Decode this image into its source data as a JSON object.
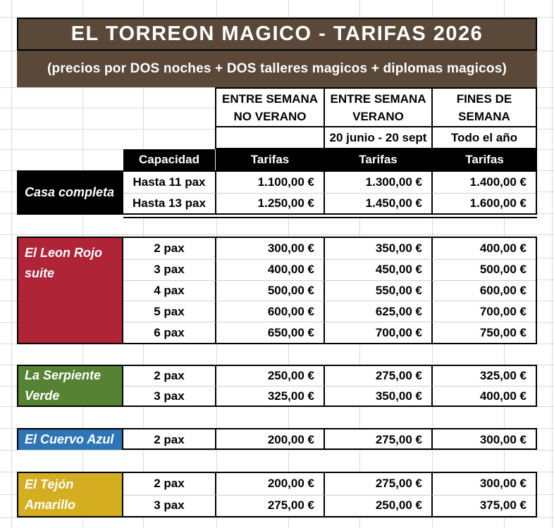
{
  "title": "EL TORREON MAGICO - TARIFAS 2026",
  "subtitle": "(precios por DOS noches + DOS talleres magicos + diplomas magicos)",
  "header": {
    "columns": [
      {
        "line1": "ENTRE SEMANA",
        "line2": "NO VERANO",
        "period": ""
      },
      {
        "line1": "ENTRE SEMANA",
        "line2": "VERANO",
        "period": "20 junio - 20 sept"
      },
      {
        "line1": "FINES DE",
        "line2": "SEMANA",
        "period": "Todo el año"
      }
    ],
    "capacity_label": "Capacidad",
    "tariff_label": "Tarifas"
  },
  "colors": {
    "brown": "#5a4838",
    "black": "#000000",
    "red": "#b02438",
    "green": "#568233",
    "blue": "#2e75b6",
    "yellow": "#d4ad20",
    "grid": "#d9d9d9"
  },
  "sections": [
    {
      "id": "casa-completa",
      "name": "Casa completa",
      "color": "#000000",
      "rows": [
        {
          "capacity": "Hasta 11 pax",
          "prices": [
            "1.100,00 €",
            "1.300,00 €",
            "1.400,00 €"
          ]
        },
        {
          "capacity": "Hasta 13 pax",
          "prices": [
            "1.250,00 €",
            "1.450,00 €",
            "1.600,00 €"
          ]
        }
      ]
    },
    {
      "id": "el-leon-rojo-suite",
      "name": "El Leon Rojo suite",
      "color": "#b02438",
      "rows": [
        {
          "capacity": "2 pax",
          "prices": [
            "300,00 €",
            "350,00 €",
            "400,00 €"
          ]
        },
        {
          "capacity": "3 pax",
          "prices": [
            "400,00 €",
            "450,00 €",
            "500,00 €"
          ]
        },
        {
          "capacity": "4 pax",
          "prices": [
            "500,00 €",
            "550,00 €",
            "600,00 €"
          ]
        },
        {
          "capacity": "5 pax",
          "prices": [
            "600,00 €",
            "625,00 €",
            "700,00 €"
          ]
        },
        {
          "capacity": "6 pax",
          "prices": [
            "650,00 €",
            "700,00 €",
            "750,00 €"
          ]
        }
      ]
    },
    {
      "id": "la-serpiente-verde",
      "name": "La Serpiente Verde",
      "color": "#568233",
      "rows": [
        {
          "capacity": "2 pax",
          "prices": [
            "250,00 €",
            "275,00 €",
            "325,00 €"
          ]
        },
        {
          "capacity": "3 pax",
          "prices": [
            "325,00 €",
            "350,00 €",
            "400,00 €"
          ]
        }
      ]
    },
    {
      "id": "el-cuervo-azul",
      "name": "El Cuervo Azul",
      "color": "#2e75b6",
      "rows": [
        {
          "capacity": "2 pax",
          "prices": [
            "200,00 €",
            "275,00 €",
            "300,00 €"
          ]
        }
      ]
    },
    {
      "id": "el-tejon-amarillo",
      "name": "El Tejón Amarillo",
      "color": "#d4ad20",
      "rows": [
        {
          "capacity": "2 pax",
          "prices": [
            "200,00 €",
            "275,00 €",
            "300,00 €"
          ]
        },
        {
          "capacity": "3 pax",
          "prices": [
            "275,00 €",
            "250,00 €",
            "375,00 €"
          ]
        }
      ]
    }
  ]
}
